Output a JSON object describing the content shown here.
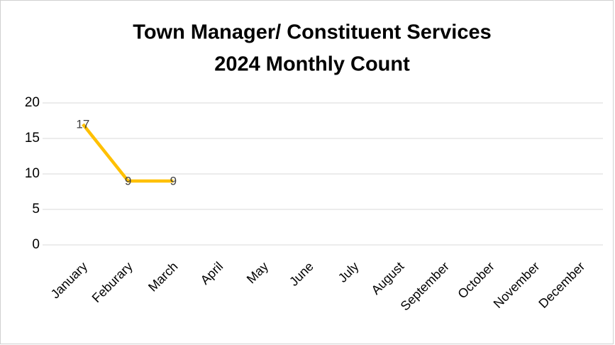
{
  "chart_data": {
    "type": "line",
    "title": [
      "Town Manager/ Constituent Services",
      "2024 Monthly Count"
    ],
    "categories": [
      "January",
      "Feburary",
      "March",
      "April",
      "May",
      "June",
      "July",
      "August",
      "September",
      "October",
      "November",
      "December"
    ],
    "values": [
      17,
      9,
      9,
      null,
      null,
      null,
      null,
      null,
      null,
      null,
      null,
      null
    ],
    "color": "#ffc000",
    "ylim": [
      0,
      20
    ],
    "yticks": [
      0,
      5,
      10,
      15,
      20
    ],
    "grid": true
  }
}
